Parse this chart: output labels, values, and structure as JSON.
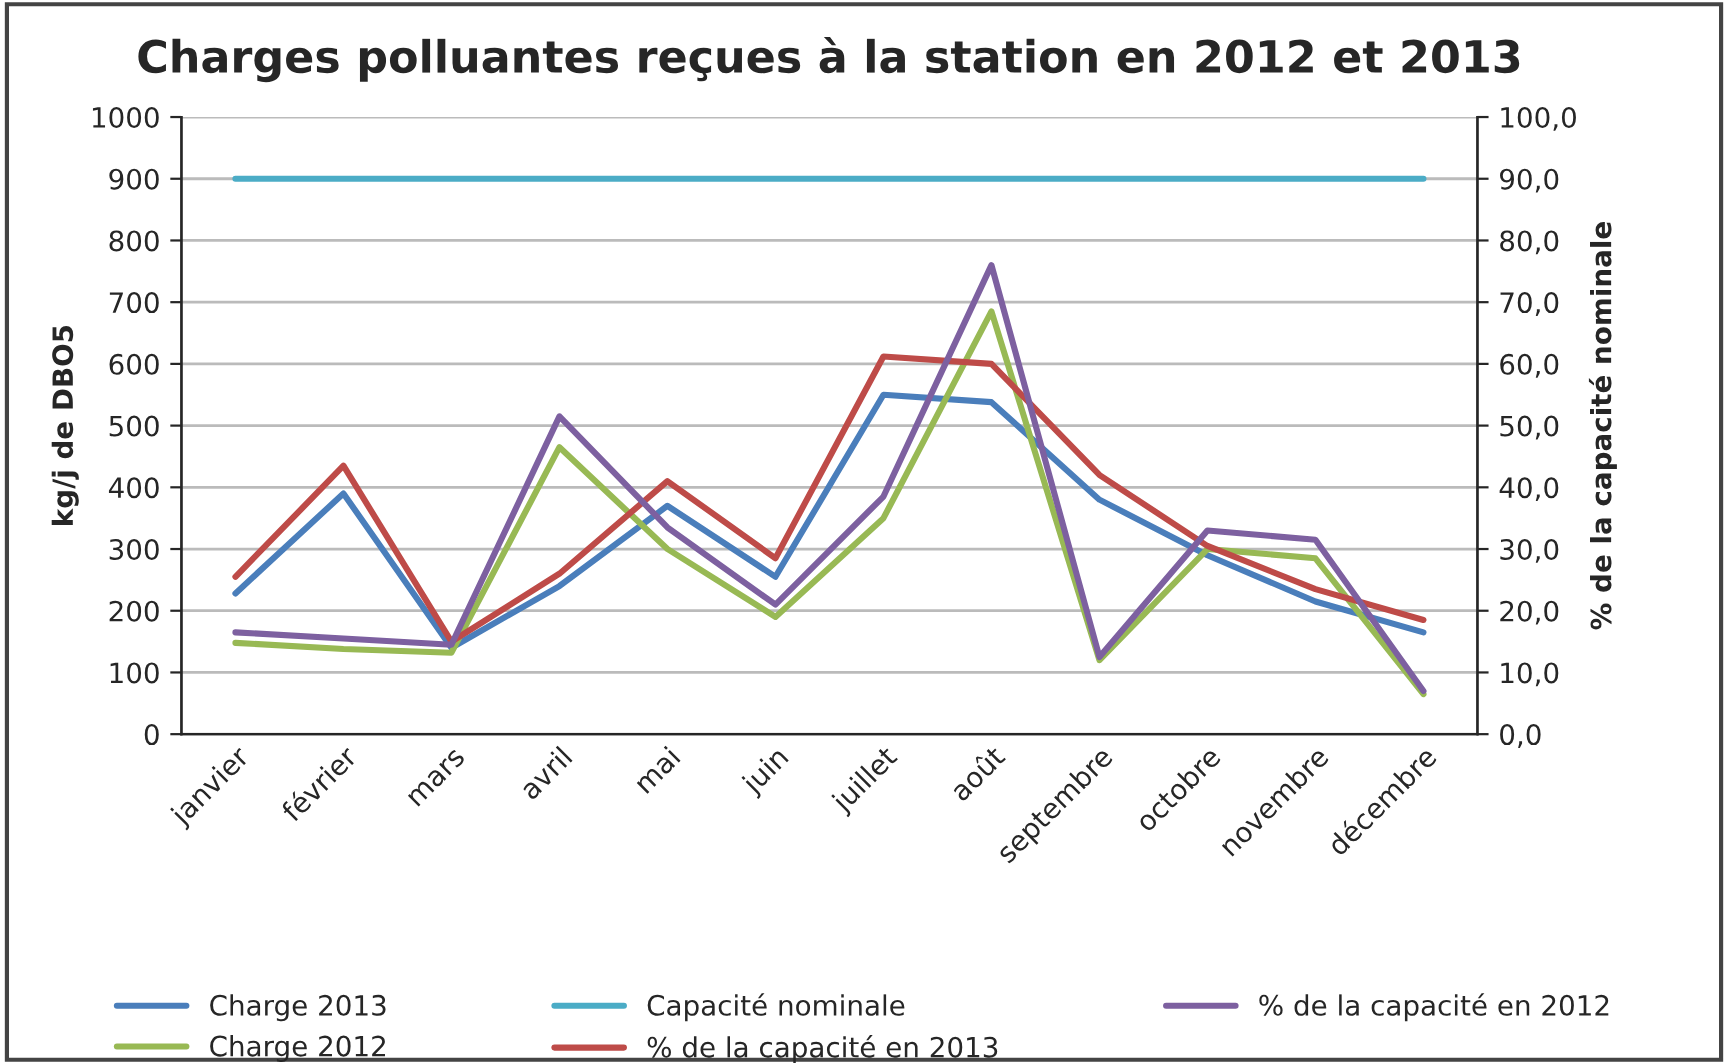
{
  "chart_data": {
    "type": "line",
    "title": "Charges polluantes reçues à la station en 2012 et 2013",
    "ylabel": "kg/j de DBO5",
    "y2label": "% de la capacité nominale",
    "categories": [
      "janvier",
      "février",
      "mars",
      "avril",
      "mai",
      "juin",
      "juillet",
      "août",
      "septembre",
      "octobre",
      "novembre",
      "décembre"
    ],
    "series": [
      {
        "name": "Charge 2013",
        "color": "#4a7ebb",
        "values": [
          228,
          390,
          140,
          240,
          370,
          255,
          550,
          538,
          380,
          290,
          215,
          165
        ]
      },
      {
        "name": "Charge 2012",
        "color": "#98b954",
        "values": [
          148,
          138,
          132,
          465,
          300,
          190,
          350,
          685,
          120,
          300,
          285,
          65
        ]
      },
      {
        "name": "Capacité nominale",
        "color": "#4bacc6",
        "values": [
          900,
          900,
          900,
          900,
          900,
          900,
          900,
          900,
          900,
          900,
          900,
          900
        ]
      },
      {
        "name": "% de la capacité en 2013",
        "color": "#be4b48",
        "axis": "y2",
        "values": [
          25.5,
          43.5,
          15,
          26,
          41,
          28.5,
          61.2,
          60,
          42,
          30.5,
          23.5,
          18.5
        ]
      },
      {
        "name": "% de la capacité en 2012",
        "color": "#7d60a0",
        "axis": "y2",
        "values": [
          16.5,
          15.5,
          14.5,
          51.5,
          33.5,
          21,
          38.5,
          76,
          12.5,
          33,
          31.5,
          7
        ]
      }
    ],
    "ylim": [
      0,
      1000
    ],
    "yticks": [
      0,
      100,
      200,
      300,
      400,
      500,
      600,
      700,
      800,
      900,
      1000
    ],
    "y2lim": [
      0,
      100
    ],
    "y2ticks": [
      {
        "value": 0,
        "label": "0,0"
      },
      {
        "value": 10,
        "label": "10,0"
      },
      {
        "value": 20,
        "label": "20,0"
      },
      {
        "value": 30,
        "label": "30,0"
      },
      {
        "value": 40,
        "label": "40,0"
      },
      {
        "value": 50,
        "label": "50,0"
      },
      {
        "value": 60,
        "label": "60,0"
      },
      {
        "value": 70,
        "label": "70,0"
      },
      {
        "value": 80,
        "label": "80,0"
      },
      {
        "value": 90,
        "label": "90,0"
      },
      {
        "value": 100,
        "label": "100,0"
      }
    ],
    "grid": "y",
    "legend": "bottom",
    "marker": "none",
    "line_style": "solid"
  }
}
